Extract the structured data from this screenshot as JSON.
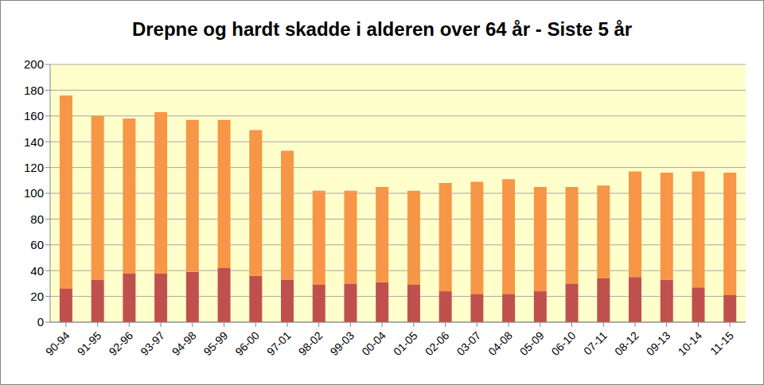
{
  "chart_data": {
    "type": "bar",
    "title": "Drepne og hardt skadde i alderen over 64 år - Siste 5 år",
    "categories": [
      "90-94",
      "91-95",
      "92-96",
      "93-97",
      "94-98",
      "95-99",
      "96-00",
      "97-01",
      "98-02",
      "99-03",
      "00-04",
      "01-05",
      "02-06",
      "03-07",
      "04-08",
      "05-09",
      "06-10",
      "07-11",
      "08-12",
      "09-13",
      "10-14",
      "11-15"
    ],
    "series": [
      {
        "color": "#c0504d",
        "values": [
          26,
          33,
          38,
          38,
          39,
          42,
          36,
          33,
          29,
          30,
          31,
          29,
          24,
          22,
          22,
          24,
          30,
          34,
          35,
          33,
          27,
          21
        ]
      },
      {
        "color": "#f79646",
        "values": [
          150,
          127,
          120,
          125,
          118,
          115,
          113,
          100,
          73,
          72,
          74,
          73,
          84,
          87,
          89,
          81,
          75,
          72,
          82,
          83,
          90,
          95
        ]
      }
    ],
    "ylim": [
      0,
      200
    ],
    "yticks": [
      0,
      20,
      40,
      60,
      80,
      100,
      120,
      140,
      160,
      180,
      200
    ],
    "grid": true,
    "stacked": true
  }
}
